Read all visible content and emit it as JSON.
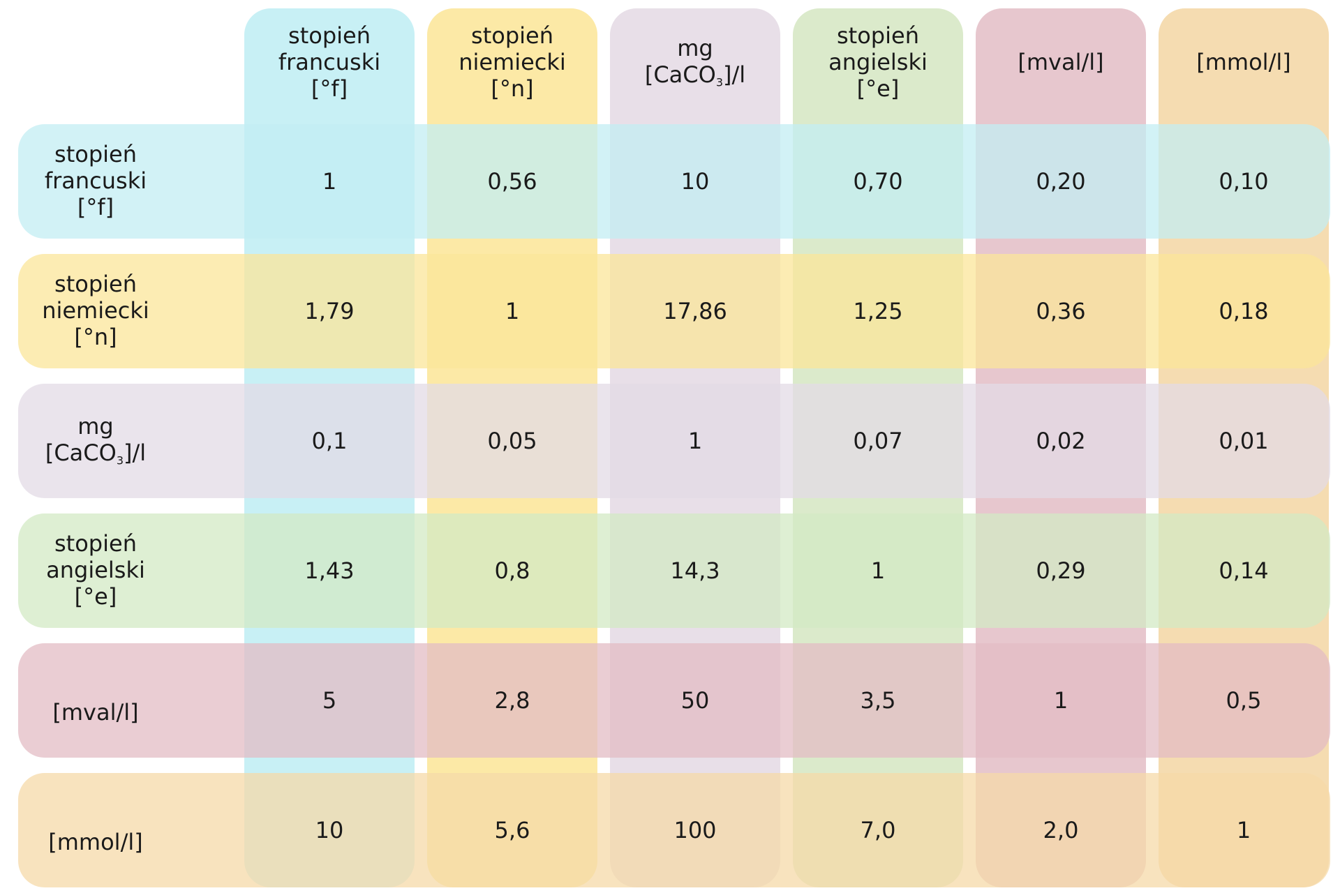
{
  "chart_data": {
    "type": "table",
    "title": "",
    "columns": [
      {
        "line1": "stopień",
        "line2": "francuski",
        "line3": "[°f]",
        "color": "#c8f0f5"
      },
      {
        "line1": "stopień",
        "line2": "niemiecki",
        "line3": "[°n]",
        "color": "#fce9a6"
      },
      {
        "line1": "mg",
        "line2_pre": "[CaCO",
        "line2_sub": "3",
        "line2_post": "]/l",
        "color": "#e8dfe8"
      },
      {
        "line1": "stopień",
        "line2": "angielski",
        "line3": "[°e]",
        "color": "#dbeacb"
      },
      {
        "line1": "[mval/l]",
        "color": "#e7c7ce"
      },
      {
        "line1": "[mmol/l]",
        "color": "#f5dcb1"
      }
    ],
    "rows": [
      {
        "line1": "stopień",
        "line2": "francuski",
        "line3": "[°f]",
        "color": "#c3eef3",
        "values": [
          "1",
          "0,56",
          "10",
          "0,70",
          "0,20",
          "0,10"
        ]
      },
      {
        "line1": "stopień",
        "line2": "niemiecki",
        "line3": "[°n]",
        "color": "#fbe69a",
        "values": [
          "1,79",
          "1",
          "17,86",
          "1,25",
          "0,36",
          "0,18"
        ]
      },
      {
        "line1": "mg",
        "line2_pre": "[CaCO",
        "line2_sub": "3",
        "line2_post": "]/l",
        "color": "#e3dbe5",
        "values": [
          "0,1",
          "0,05",
          "1",
          "0,07",
          "0,02",
          "0,01"
        ]
      },
      {
        "line1": "stopień",
        "line2": "angielski",
        "line3": "[°e]",
        "color": "#d3eac4",
        "values": [
          "1,43",
          "0,8",
          "14,3",
          "1",
          "0,29",
          "0,14"
        ]
      },
      {
        "line1": "[mval/l]",
        "color": "#e3bcc4",
        "values": [
          "5",
          "2,8",
          "50",
          "3,5",
          "1",
          "0,5"
        ]
      },
      {
        "line1": "[mmol/l]",
        "color": "#f5d9a8",
        "values": [
          "10",
          "5,6",
          "100",
          "7,0",
          "2,0",
          "1"
        ]
      }
    ]
  }
}
